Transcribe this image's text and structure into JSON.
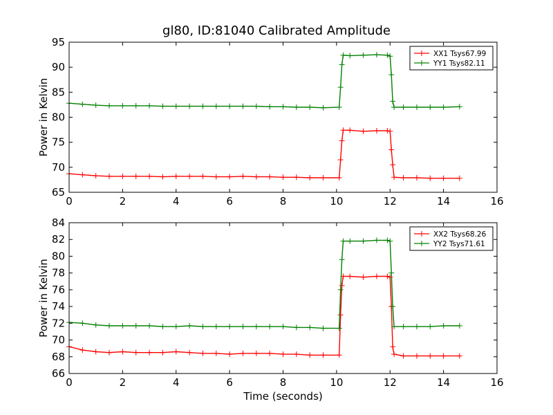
{
  "figure": {
    "title": "gl80, ID:81040 Calibrated Amplitude",
    "xlabel": "Time (seconds)"
  },
  "chart_data": [
    {
      "type": "line",
      "title": "gl80, ID:81040 Calibrated Amplitude",
      "xlabel": "",
      "ylabel": "Power in Kelvin",
      "xlim": [
        0,
        16
      ],
      "ylim": [
        65,
        95
      ],
      "xticks": [
        0,
        2,
        4,
        6,
        8,
        10,
        12,
        14,
        16
      ],
      "yticks": [
        65,
        70,
        75,
        80,
        85,
        90,
        95
      ],
      "grid": false,
      "legend_position": "top-right",
      "series": [
        {
          "name": "XX1 Tsys67.99",
          "color": "#ff0000",
          "marker": "+",
          "x": [
            0,
            0.5,
            1,
            1.5,
            2,
            2.5,
            3,
            3.5,
            4,
            4.5,
            5,
            5.5,
            6,
            6.5,
            7,
            7.5,
            8,
            8.5,
            9,
            9.5,
            10.1,
            10.15,
            10.2,
            10.25,
            10.5,
            11,
            11.5,
            11.9,
            12.0,
            12.05,
            12.1,
            12.15,
            12.5,
            13,
            13.5,
            14,
            14.6
          ],
          "y": [
            68.7,
            68.5,
            68.3,
            68.2,
            68.2,
            68.2,
            68.2,
            68.1,
            68.2,
            68.2,
            68.2,
            68.1,
            68.1,
            68.2,
            68.1,
            68.1,
            68.0,
            68.0,
            67.9,
            67.9,
            67.9,
            71.5,
            75.3,
            77.4,
            77.4,
            77.2,
            77.3,
            77.3,
            77.2,
            73.5,
            70.5,
            68.0,
            67.9,
            67.9,
            67.8,
            67.8,
            67.8
          ]
        },
        {
          "name": "YY1 Tsys82.11",
          "color": "#008000",
          "marker": "+",
          "x": [
            0,
            0.5,
            1,
            1.5,
            2,
            2.5,
            3,
            3.5,
            4,
            4.5,
            5,
            5.5,
            6,
            6.5,
            7,
            7.5,
            8,
            8.5,
            9,
            9.5,
            10.1,
            10.15,
            10.2,
            10.25,
            10.5,
            11,
            11.5,
            11.9,
            12.0,
            12.05,
            12.1,
            12.15,
            12.5,
            13,
            13.5,
            14,
            14.6
          ],
          "y": [
            82.8,
            82.6,
            82.4,
            82.3,
            82.3,
            82.3,
            82.3,
            82.2,
            82.2,
            82.2,
            82.2,
            82.2,
            82.2,
            82.2,
            82.2,
            82.1,
            82.1,
            82.0,
            82.0,
            81.9,
            82.0,
            86.0,
            90.5,
            92.4,
            92.3,
            92.4,
            92.5,
            92.4,
            92.2,
            88.5,
            83.2,
            82.0,
            82.0,
            82.0,
            82.0,
            82.0,
            82.1
          ]
        }
      ]
    },
    {
      "type": "line",
      "title": "",
      "xlabel": "Time (seconds)",
      "ylabel": "Power in Kelvin",
      "xlim": [
        0,
        16
      ],
      "ylim": [
        66,
        84
      ],
      "xticks": [
        0,
        2,
        4,
        6,
        8,
        10,
        12,
        14,
        16
      ],
      "yticks": [
        66,
        68,
        70,
        72,
        74,
        76,
        78,
        80,
        82,
        84
      ],
      "grid": false,
      "legend_position": "top-right",
      "series": [
        {
          "name": "XX2 Tsys68.26",
          "color": "#ff0000",
          "marker": "+",
          "x": [
            0,
            0.5,
            1,
            1.5,
            2,
            2.5,
            3,
            3.5,
            4,
            4.5,
            5,
            5.5,
            6,
            6.5,
            7,
            7.5,
            8,
            8.5,
            9,
            9.5,
            10.1,
            10.15,
            10.2,
            10.25,
            10.5,
            11,
            11.5,
            11.9,
            12.0,
            12.05,
            12.1,
            12.15,
            12.5,
            13,
            13.5,
            14,
            14.6
          ],
          "y": [
            69.2,
            68.8,
            68.6,
            68.5,
            68.6,
            68.5,
            68.5,
            68.5,
            68.6,
            68.5,
            68.4,
            68.4,
            68.3,
            68.4,
            68.4,
            68.4,
            68.3,
            68.3,
            68.2,
            68.2,
            68.2,
            73.0,
            76.5,
            77.6,
            77.6,
            77.5,
            77.6,
            77.6,
            77.5,
            74.0,
            69.2,
            68.3,
            68.1,
            68.1,
            68.1,
            68.1,
            68.1
          ]
        },
        {
          "name": "YY2 Tsys71.61",
          "color": "#008000",
          "marker": "+",
          "x": [
            0,
            0.5,
            1,
            1.5,
            2,
            2.5,
            3,
            3.5,
            4,
            4.5,
            5,
            5.5,
            6,
            6.5,
            7,
            7.5,
            8,
            8.5,
            9,
            9.5,
            10.1,
            10.15,
            10.2,
            10.25,
            10.5,
            11,
            11.5,
            11.9,
            12.0,
            12.05,
            12.1,
            12.15,
            12.5,
            13,
            13.5,
            14,
            14.6
          ],
          "y": [
            72.1,
            72.0,
            71.8,
            71.7,
            71.7,
            71.7,
            71.7,
            71.6,
            71.6,
            71.7,
            71.6,
            71.6,
            71.6,
            71.6,
            71.6,
            71.6,
            71.6,
            71.5,
            71.5,
            71.4,
            71.4,
            76.0,
            79.6,
            81.8,
            81.8,
            81.8,
            81.9,
            81.9,
            81.8,
            78.0,
            74.0,
            71.6,
            71.6,
            71.6,
            71.6,
            71.7,
            71.7
          ]
        }
      ]
    }
  ]
}
